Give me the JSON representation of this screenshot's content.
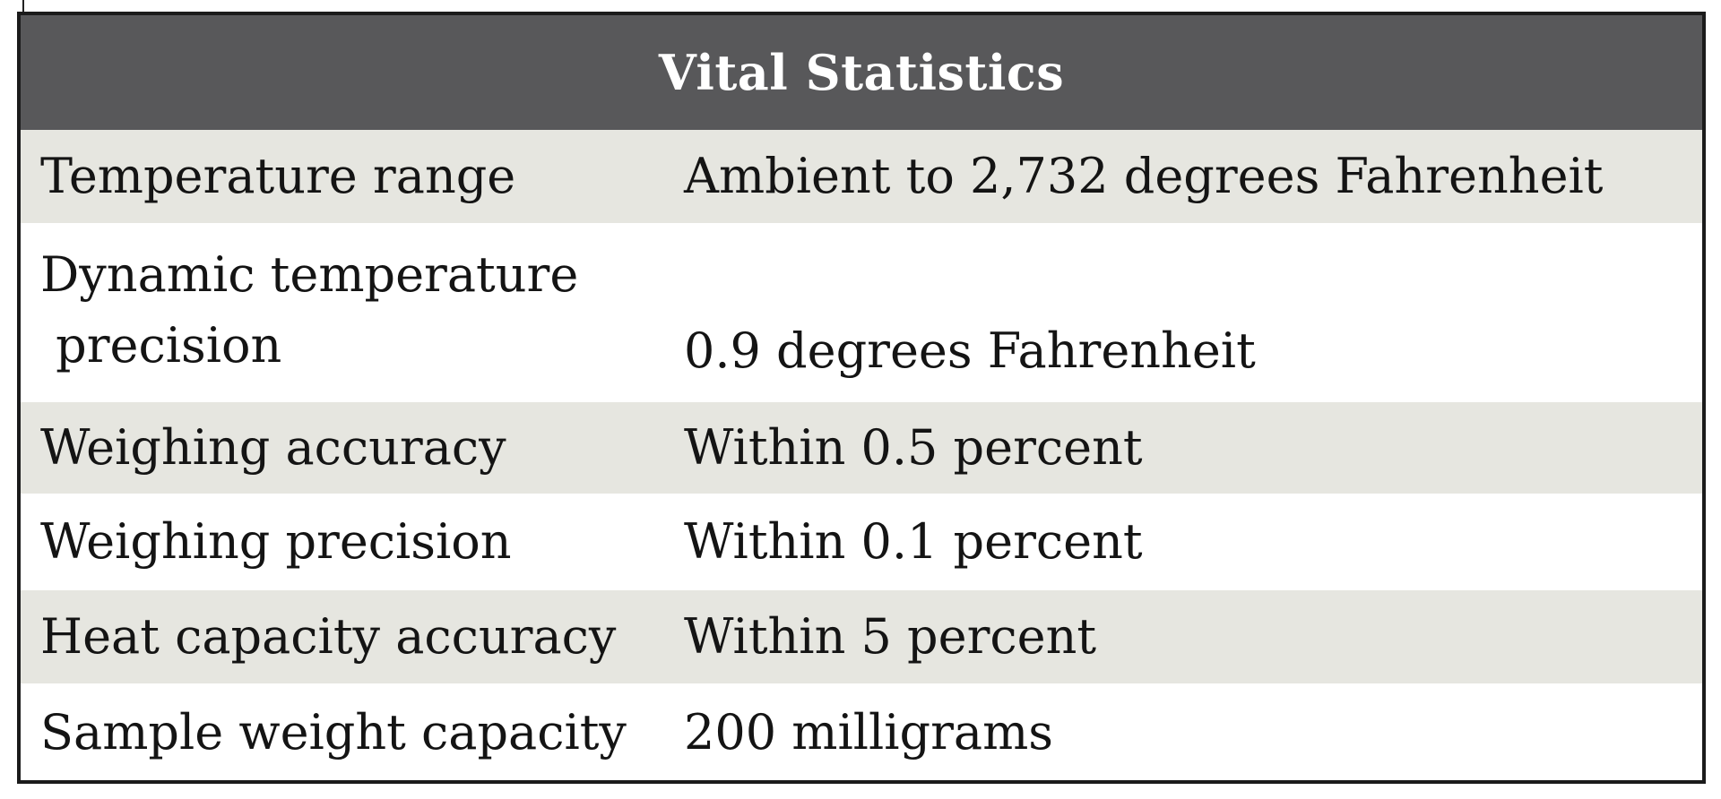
{
  "table": {
    "title": "Vital Statistics",
    "rows": [
      {
        "label": "Temperature range",
        "value": "Ambient to 2,732 degrees Fahrenheit"
      },
      {
        "label": "Dynamic temperature\n precision",
        "value": "0.9 degrees Fahrenheit"
      },
      {
        "label": "Weighing accuracy",
        "value": "Within 0.5 percent"
      },
      {
        "label": "Weighing precision",
        "value": "Within 0.1 percent"
      },
      {
        "label": "Heat capacity accuracy",
        "value": "Within 5 percent"
      },
      {
        "label": "Sample weight capacity",
        "value": "200 milligrams"
      }
    ]
  },
  "colors": {
    "header_bg": "#58585a",
    "header_text": "#ffffff",
    "shaded_row": "#e6e6e0",
    "border": "#1b1b1b"
  }
}
